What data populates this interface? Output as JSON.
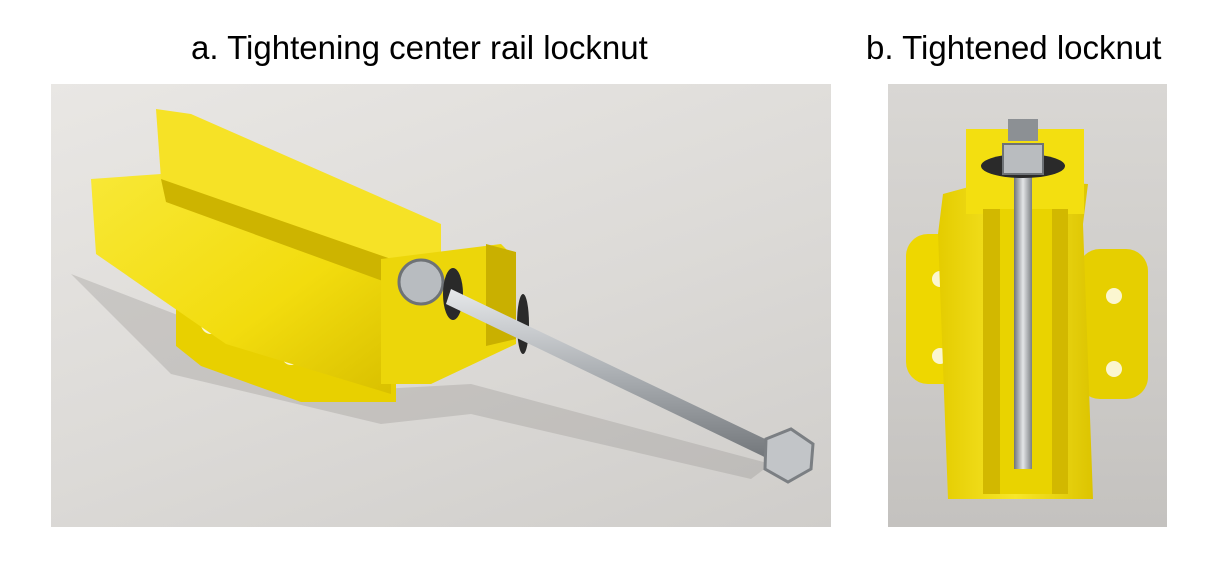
{
  "captions": {
    "a": "a. Tightening center rail locknut",
    "b": "b. Tightened locknut"
  },
  "colors": {
    "part_yellow": "#f5e10f",
    "background_gray": "#dedcd9",
    "bolt_steel": "#b9bcbf"
  }
}
